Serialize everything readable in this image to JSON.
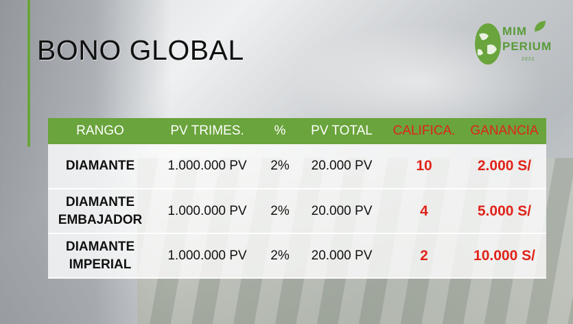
{
  "title": "BONO GLOBAL",
  "logo": {
    "line1": "MIM",
    "line2": "PERIUM",
    "year": "2022"
  },
  "colors": {
    "accent": "#6aa43c",
    "highlight": "#e0231a"
  },
  "table": {
    "headers": {
      "rango": "RANGO",
      "pv_trimes": "PV TRIMES.",
      "percent": "%",
      "pv_total": "PV TOTAL",
      "califica": "CALIFICA.",
      "ganancia": "GANANCIA"
    },
    "rows": [
      {
        "rango_1": "DIAMANTE",
        "rango_2": "",
        "pv_trimes": "1.000.000 PV",
        "percent": "2%",
        "pv_total": "20.000 PV",
        "califica": "10",
        "ganancia": "2.000 S/"
      },
      {
        "rango_1": "DIAMANTE",
        "rango_2": "EMBAJADOR",
        "pv_trimes": "1.000.000 PV",
        "percent": "2%",
        "pv_total": "20.000 PV",
        "califica": "4",
        "ganancia": "5.000 S/"
      },
      {
        "rango_1": "DIAMANTE",
        "rango_2": "IMPERIAL",
        "pv_trimes": "1.000.000 PV",
        "percent": "2%",
        "pv_total": "20.000 PV",
        "califica": "2",
        "ganancia": "10.000 S/"
      }
    ]
  }
}
